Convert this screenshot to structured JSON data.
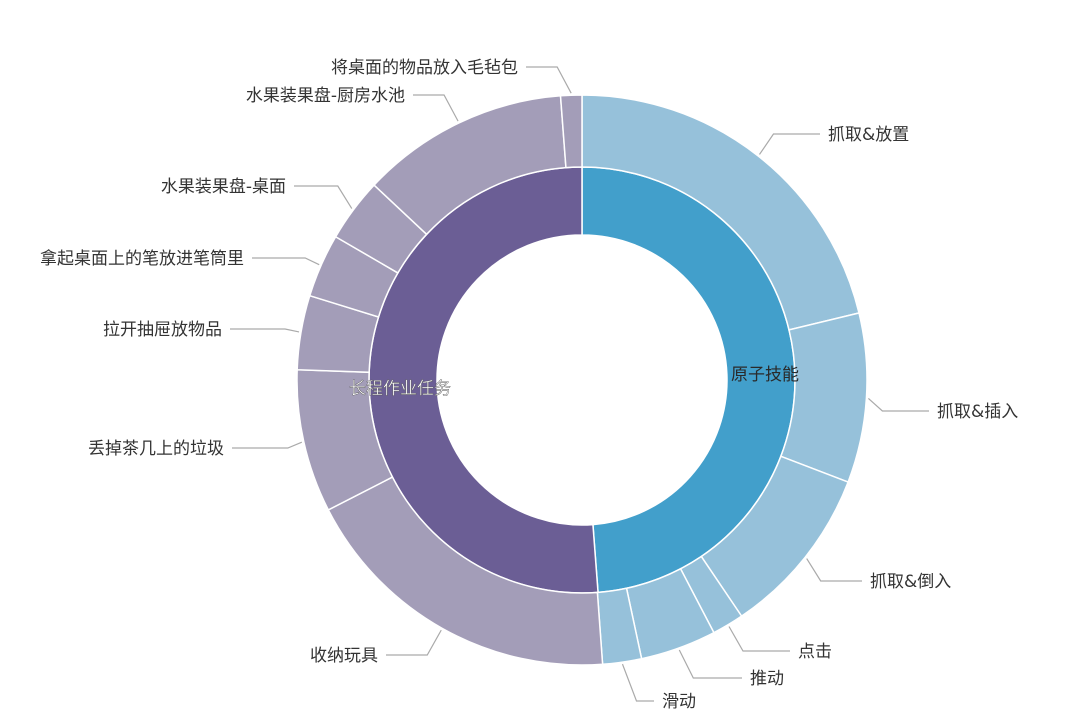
{
  "chart_data": {
    "type": "sunburst",
    "unit": "percent (estimated share of ring)",
    "inner": [
      {
        "name": "原子技能",
        "color": "#429fcb",
        "value": 48.8
      },
      {
        "name": "长程作业任务",
        "color": "#6b5e95",
        "value": 51.2
      }
    ],
    "outer": [
      {
        "name": "抓取&放置",
        "parent": "原子技能",
        "value": 21.2,
        "color": "#96c1da"
      },
      {
        "name": "抓取&插入",
        "parent": "原子技能",
        "value": 9.6,
        "color": "#96c1da"
      },
      {
        "name": "抓取&倒入",
        "parent": "原子技能",
        "value": 9.7,
        "color": "#96c1da"
      },
      {
        "name": "点击",
        "parent": "原子技能",
        "value": 1.8,
        "color": "#96c1da"
      },
      {
        "name": "推动",
        "parent": "原子技能",
        "value": 4.3,
        "color": "#96c1da"
      },
      {
        "name": "滑动",
        "parent": "原子技能",
        "value": 2.2,
        "color": "#96c1da"
      },
      {
        "name": "收纳玩具",
        "parent": "长程作业任务",
        "value": 18.6,
        "color": "#a39db8"
      },
      {
        "name": "丢掉茶几上的垃圾",
        "parent": "长程作业任务",
        "value": 8.1,
        "color": "#a39db8"
      },
      {
        "name": "拉开抽屉放物品",
        "parent": "长程作业任务",
        "value": 4.2,
        "color": "#a39db8"
      },
      {
        "name": "拿起桌面上的笔放进笔筒里",
        "parent": "长程作业任务",
        "value": 3.6,
        "color": "#a39db8"
      },
      {
        "name": "水果装果盘-桌面",
        "parent": "长程作业任务",
        "value": 3.6,
        "color": "#a39db8"
      },
      {
        "name": "水果装果盘-厨房水池",
        "parent": "长程作业任务",
        "value": 11.8,
        "color": "#a39db8"
      },
      {
        "name": "将桌面的物品放入毛毡包",
        "parent": "长程作业任务",
        "value": 1.2,
        "color": "#a39db8"
      }
    ]
  }
}
